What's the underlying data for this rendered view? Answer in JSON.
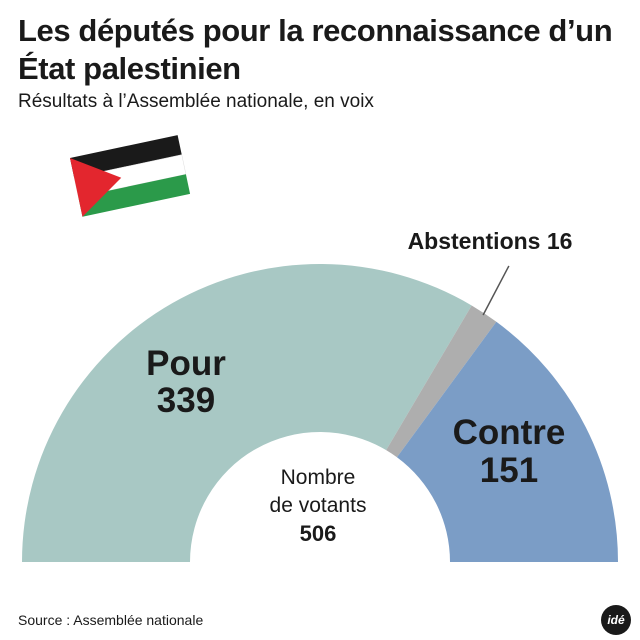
{
  "chart_data": {
    "type": "pie",
    "variant": "half-donut",
    "title": "Les députés pour la reconnaissance d’un État palestinien",
    "subtitle": "Résultats à l’Assemblée nationale, en voix",
    "categories": [
      "Pour",
      "Abstentions",
      "Contre"
    ],
    "values": [
      339,
      16,
      151
    ],
    "unit": "voix",
    "colors": [
      "#a8c8c4",
      "#aeaeae",
      "#7b9dc6"
    ],
    "center_label": [
      "Nombre",
      "de votants"
    ],
    "center_value": "506",
    "abstention_label": "Abstentions 16"
  },
  "source": "Source : Assemblée nationale",
  "logo_text": "idé",
  "flag_colors": {
    "black": "#1a1a1a",
    "white": "#ffffff",
    "green": "#2b9a4a",
    "red": "#e3262e"
  }
}
